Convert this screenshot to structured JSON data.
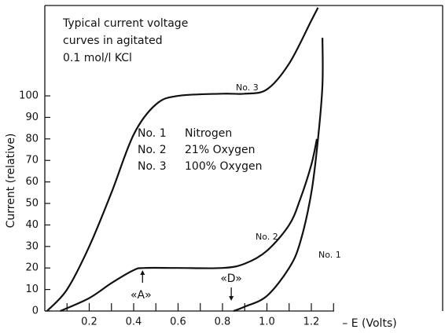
{
  "chart_data": {
    "type": "line",
    "title_lines": [
      "Typical current voltage",
      "curves in agitated",
      "0.1 mol/l KCl"
    ],
    "y_label": "Current (relative)",
    "x_label": "– E (Volts)",
    "xlim": [
      0,
      1.3
    ],
    "ylim": [
      0,
      142
    ],
    "xticks": [
      0.2,
      0.4,
      0.6,
      0.8,
      {
        "value": 1,
        "label": "1.0"
      },
      1.2
    ],
    "minor_xticks": [
      0.1,
      0.3,
      0.5,
      0.7,
      0.9,
      1.1,
      1.3
    ],
    "yticks": [
      0,
      10,
      20,
      30,
      40,
      50,
      60,
      70,
      80,
      90,
      100
    ],
    "color": "#111111",
    "series": [
      {
        "name": "No. 1",
        "description": "Nitrogen",
        "x": [
          0.85,
          0.9,
          1.0,
          1.1,
          1.15,
          1.2,
          1.23,
          1.25,
          1.25
        ],
        "values": [
          0,
          2,
          7,
          20,
          32,
          55,
          80,
          105,
          127
        ]
      },
      {
        "name": "No. 2",
        "description": "21% Oxygen",
        "x": [
          0.07,
          0.2,
          0.3,
          0.4,
          0.45,
          0.6,
          0.8,
          0.9,
          1.0,
          1.1,
          1.15,
          1.2,
          1.225
        ],
        "values": [
          0,
          6,
          13,
          19,
          20,
          20,
          20,
          22,
          28,
          40,
          52,
          68,
          80
        ]
      },
      {
        "name": "No. 3",
        "description": "100% Oxygen",
        "x": [
          0.01,
          0.1,
          0.2,
          0.3,
          0.4,
          0.5,
          0.6,
          0.8,
          0.9,
          1.0,
          1.1,
          1.2,
          1.23
        ],
        "values": [
          0,
          10,
          30,
          55,
          82,
          96,
          100,
          101,
          101,
          103,
          115,
          135,
          141
        ]
      }
    ],
    "annotations": [
      "«A»",
      "«D»"
    ]
  }
}
